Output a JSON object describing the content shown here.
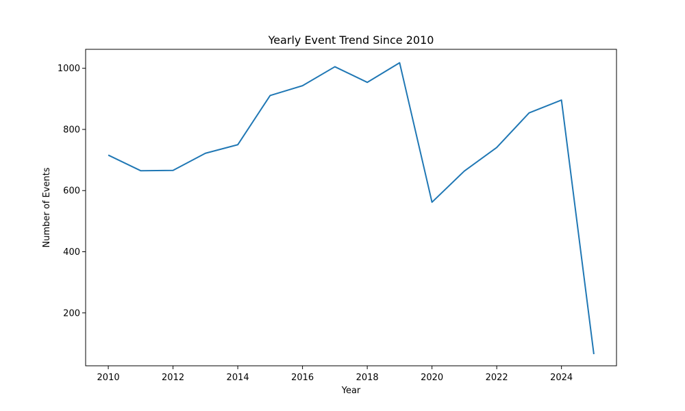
{
  "chart_data": {
    "type": "line",
    "title": "Yearly Event Trend Since 2010",
    "xlabel": "Year",
    "ylabel": "Number of Events",
    "xlim": [
      2009.3,
      2025.7
    ],
    "ylim": [
      27,
      1062
    ],
    "xticks": [
      2010,
      2012,
      2014,
      2016,
      2018,
      2020,
      2022,
      2024
    ],
    "yticks": [
      200,
      400,
      600,
      800,
      1000
    ],
    "grid": false,
    "colors": {
      "series": "#1f77b4"
    },
    "series": [
      {
        "x": [
          2010,
          2011,
          2012,
          2013,
          2014,
          2015,
          2016,
          2017,
          2018,
          2019,
          2020,
          2021,
          2022,
          2023,
          2024,
          2025
        ],
        "values": [
          716,
          665,
          666,
          722,
          750,
          911,
          943,
          1005,
          954,
          1018,
          562,
          664,
          741,
          854,
          896,
          65
        ]
      }
    ]
  }
}
